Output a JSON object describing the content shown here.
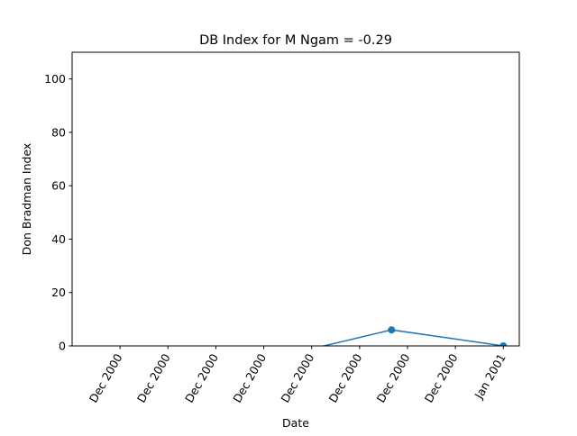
{
  "chart_data": {
    "type": "line",
    "title": "DB Index for M Ngam = -0.29",
    "xlabel": "Date",
    "ylabel": "Don Bradman Index",
    "ylim": [
      0,
      110
    ],
    "yticks": [
      0,
      20,
      40,
      60,
      80,
      100
    ],
    "xlim": [
      "2000-12-05",
      "2001-01-02"
    ],
    "xticks": [
      {
        "date": "2000-12-08",
        "label": "Dec 2000"
      },
      {
        "date": "2000-12-11",
        "label": "Dec 2000"
      },
      {
        "date": "2000-12-14",
        "label": "Dec 2000"
      },
      {
        "date": "2000-12-17",
        "label": "Dec 2000"
      },
      {
        "date": "2000-12-20",
        "label": "Dec 2000"
      },
      {
        "date": "2000-12-23",
        "label": "Dec 2000"
      },
      {
        "date": "2000-12-26",
        "label": "Dec 2000"
      },
      {
        "date": "2000-12-29",
        "label": "Dec 2000"
      },
      {
        "date": "2001-01-01",
        "label": "Jan 2001"
      }
    ],
    "series": [
      {
        "color": "#1f77b4",
        "points": [
          {
            "x": "2000-12-19",
            "y": -2.5
          },
          {
            "x": "2000-12-25",
            "y": 6
          },
          {
            "x": "2001-01-01",
            "y": 0
          }
        ]
      }
    ],
    "grid": false,
    "legend": "none"
  }
}
